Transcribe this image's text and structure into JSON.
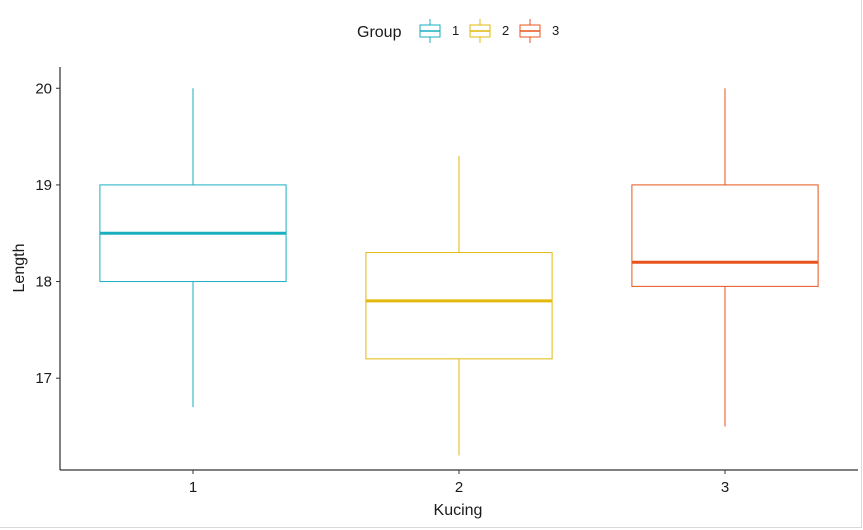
{
  "chart_data": {
    "type": "box",
    "legend": {
      "title": "Group",
      "position": "top",
      "entries": [
        {
          "label": "1",
          "color": "#1aafbf"
        },
        {
          "label": "2",
          "color": "#e2b90b"
        },
        {
          "label": "3",
          "color": "#e8541c"
        }
      ]
    },
    "xlabel": "Kucing",
    "ylabel": "Length",
    "categories": [
      "1",
      "2",
      "3"
    ],
    "yticks": [
      17,
      18,
      19,
      20
    ],
    "ylim": [
      16.05,
      20.22
    ],
    "grid": false,
    "boxes": [
      {
        "category": "1",
        "group": "1",
        "color": "#1aafbf",
        "min": 16.7,
        "q1": 18.0,
        "median": 18.5,
        "q3": 19.0,
        "max": 20.0
      },
      {
        "category": "2",
        "group": "2",
        "color": "#e2b90b",
        "min": 16.2,
        "q1": 17.2,
        "median": 17.8,
        "q3": 18.3,
        "max": 19.3
      },
      {
        "category": "3",
        "group": "3",
        "color": "#e8541c",
        "min": 16.5,
        "q1": 17.95,
        "median": 18.2,
        "q3": 19.0,
        "max": 20.0
      }
    ]
  }
}
